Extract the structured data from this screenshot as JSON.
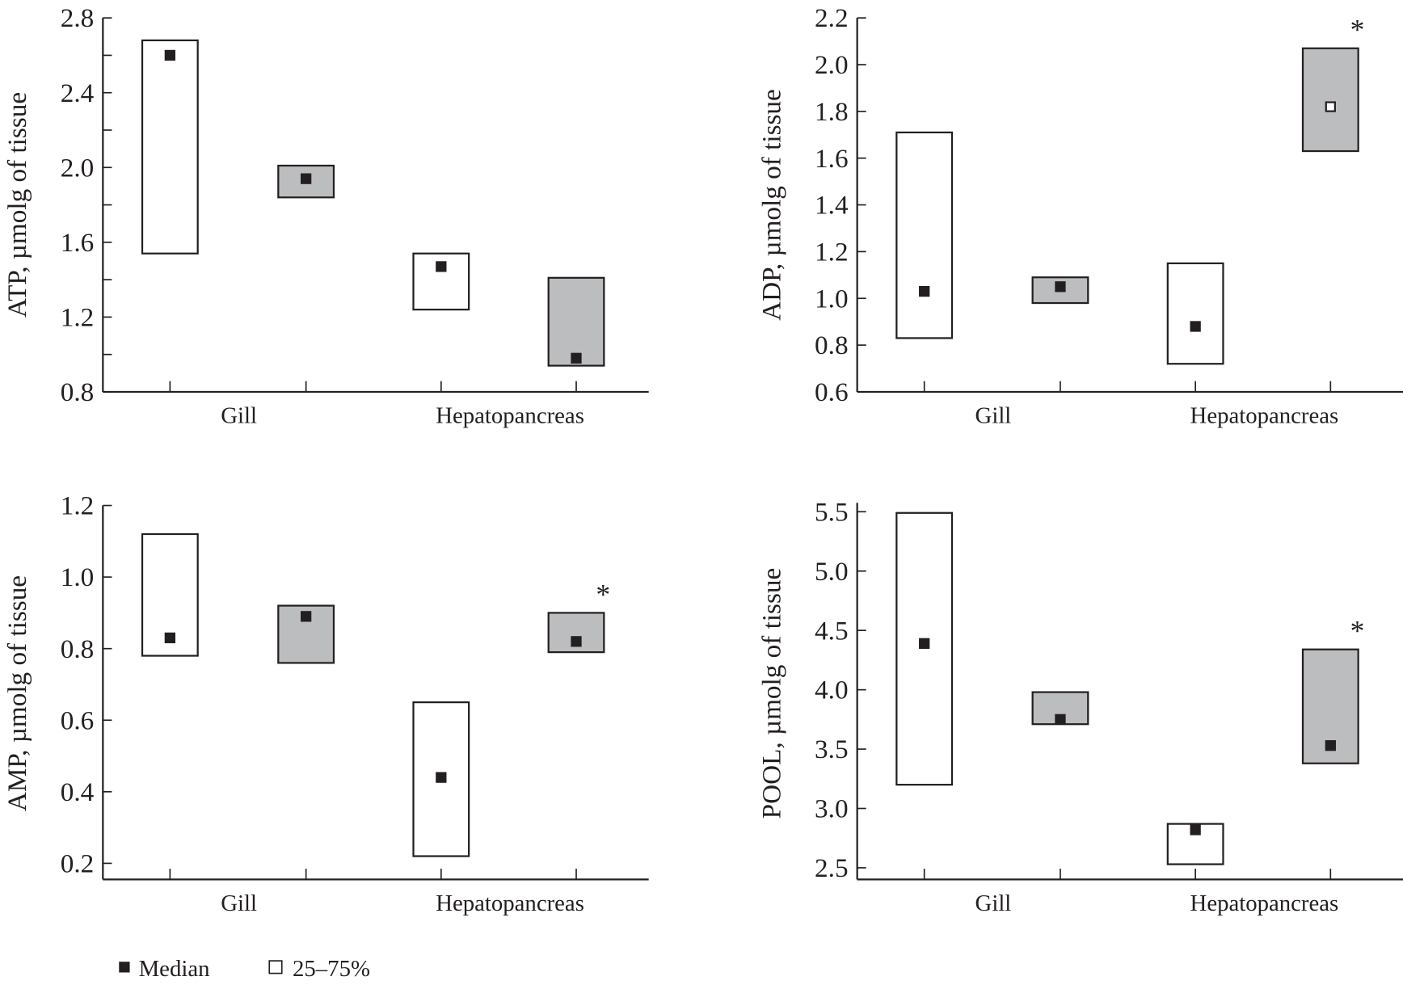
{
  "colors": {
    "axis": "#231f20",
    "control_box": "#ffffff",
    "treated_box": "#bcbdbf",
    "median": "#231f20"
  },
  "legend": {
    "median_label": "Median",
    "range_label": "25–75%"
  },
  "chart_data": [
    {
      "type": "box-range",
      "ylabel": "ATP, µmolg of tissue",
      "ylim": [
        0.8,
        2.8
      ],
      "yticks": [
        0.8,
        1.0,
        1.2,
        1.4,
        1.6,
        1.8,
        2.0,
        2.2,
        2.4,
        2.6,
        2.8
      ],
      "ytick_labels": [
        "0.8",
        "",
        "1.2",
        "",
        "1.6",
        "",
        "2.0",
        "",
        "2.4",
        "",
        "2.8"
      ],
      "groups": [
        "Gill",
        "Hepatopancreas"
      ],
      "boxes": [
        {
          "group": "Gill",
          "condition": "control",
          "q25": 1.54,
          "q75": 2.68,
          "median": 2.6,
          "significant": false
        },
        {
          "group": "Gill",
          "condition": "treated",
          "q25": 1.84,
          "q75": 2.01,
          "median": 1.94,
          "significant": false
        },
        {
          "group": "Hepatopancreas",
          "condition": "control",
          "q25": 1.24,
          "q75": 1.54,
          "median": 1.47,
          "significant": false
        },
        {
          "group": "Hepatopancreas",
          "condition": "treated",
          "q25": 0.94,
          "q75": 1.41,
          "median": 0.98,
          "significant": false
        }
      ]
    },
    {
      "type": "box-range",
      "ylabel": "ADP, µmolg of tissue",
      "ylim": [
        0.6,
        2.2
      ],
      "yticks": [
        0.6,
        0.8,
        1.0,
        1.2,
        1.4,
        1.6,
        1.8,
        2.0,
        2.2
      ],
      "ytick_labels": [
        "0.6",
        "0.8",
        "1.0",
        "1.2",
        "1.4",
        "1.6",
        "1.8",
        "2.0",
        "2.2"
      ],
      "groups": [
        "Gill",
        "Hepatopancreas"
      ],
      "boxes": [
        {
          "group": "Gill",
          "condition": "control",
          "q25": 0.83,
          "q75": 1.71,
          "median": 1.03,
          "significant": false
        },
        {
          "group": "Gill",
          "condition": "treated",
          "q25": 0.98,
          "q75": 1.09,
          "median": 1.05,
          "significant": false
        },
        {
          "group": "Hepatopancreas",
          "condition": "control",
          "q25": 0.72,
          "q75": 1.15,
          "median": 0.88,
          "significant": false
        },
        {
          "group": "Hepatopancreas",
          "condition": "treated",
          "q25": 1.63,
          "q75": 2.07,
          "median": 1.82,
          "significant": true,
          "hollow_median": true
        }
      ],
      "annotation": "*"
    },
    {
      "type": "box-range",
      "ylabel": "AMP, µmolg of tissue",
      "ylim": [
        0.155,
        1.2
      ],
      "yticks": [
        0.2,
        0.4,
        0.6,
        0.8,
        1.0,
        1.2
      ],
      "ytick_labels": [
        "0.2",
        "0.4",
        "0.6",
        "0.8",
        "1.0",
        "1.2"
      ],
      "groups": [
        "Gill",
        "Hepatopancreas"
      ],
      "boxes": [
        {
          "group": "Gill",
          "condition": "control",
          "q25": 0.78,
          "q75": 1.12,
          "median": 0.83,
          "significant": false
        },
        {
          "group": "Gill",
          "condition": "treated",
          "q25": 0.76,
          "q75": 0.92,
          "median": 0.89,
          "significant": false
        },
        {
          "group": "Hepatopancreas",
          "condition": "control",
          "q25": 0.22,
          "q75": 0.65,
          "median": 0.44,
          "significant": false
        },
        {
          "group": "Hepatopancreas",
          "condition": "treated",
          "q25": 0.79,
          "q75": 0.9,
          "median": 0.82,
          "significant": true
        }
      ],
      "annotation": "*"
    },
    {
      "type": "box-range",
      "ylabel": "POOL, µmolg of tissue",
      "ylim": [
        2.4,
        5.5
      ],
      "yticks": [
        2.5,
        3.0,
        3.5,
        4.0,
        4.5,
        5.0,
        5.5
      ],
      "ytick_labels": [
        "2.5",
        "3.0",
        "3.5",
        "4.0",
        "4.5",
        "5.0",
        "5.5"
      ],
      "groups": [
        "Gill",
        "Hepatopancreas"
      ],
      "boxes": [
        {
          "group": "Gill",
          "condition": "control",
          "q25": 3.2,
          "q75": 5.49,
          "median": 4.39,
          "significant": false
        },
        {
          "group": "Gill",
          "condition": "treated",
          "q25": 3.71,
          "q75": 3.98,
          "median": 3.75,
          "significant": false
        },
        {
          "group": "Hepatopancreas",
          "condition": "control",
          "q25": 2.53,
          "q75": 2.87,
          "median": 2.82,
          "significant": false
        },
        {
          "group": "Hepatopancreas",
          "condition": "treated",
          "q25": 3.38,
          "q75": 4.34,
          "median": 3.53,
          "significant": true
        }
      ],
      "annotation": "*"
    }
  ]
}
